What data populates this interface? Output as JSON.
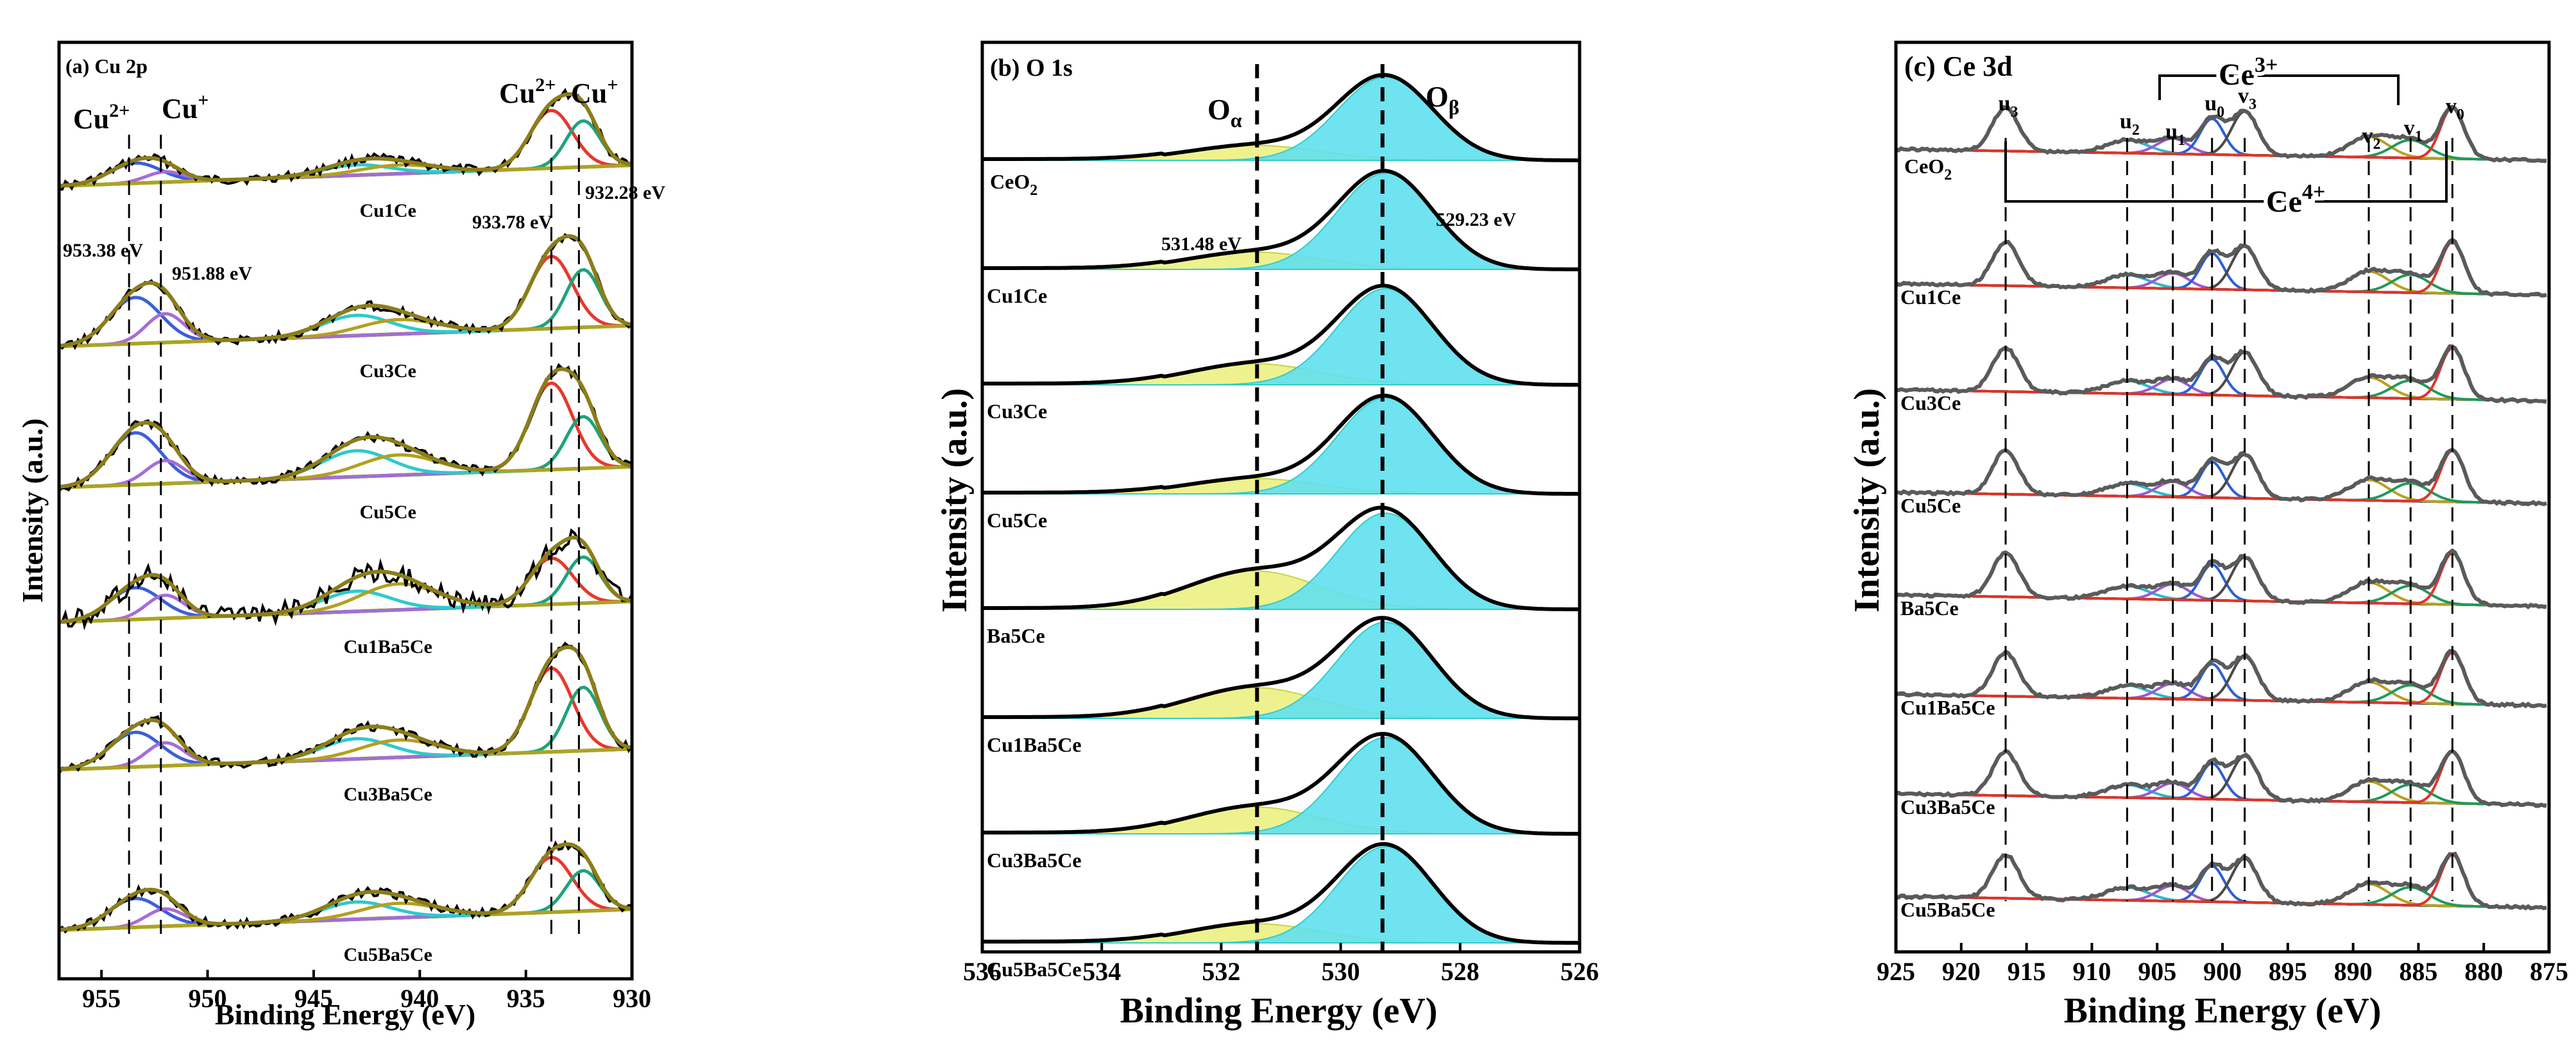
{
  "figure": {
    "panels": 3,
    "colors": {
      "data": "#000000",
      "baseline_cu": "#a6e22e",
      "baseline_cyan": "#22c4d4",
      "envelope_cu": "#8b7d1a",
      "cu2_main": "#e8372d",
      "cu1_main": "#1fa37a",
      "cu2_sat": "#3c5fd8",
      "cu1_sat": "#a66cd8",
      "shake_cyan": "#2ec9cf",
      "shake_olive": "#b3a021",
      "o_beta_fill": "#5fe0ee",
      "o_alpha_fill": "#eaf07a",
      "ce_purple": "#9b59d0",
      "ce_cyan": "#2eb8c9",
      "ce_blue": "#2b5fd6",
      "ce_gray": "#4a4a4a",
      "ce_green": "#1f9a5a",
      "ce_red": "#e0332a",
      "ce_olive": "#b8a021",
      "ce_baseline": "#7a5a1a"
    }
  },
  "chart_data": [
    {
      "type": "line",
      "panel": "a",
      "title": "(a) Cu 2p",
      "xlabel": "Binding Energy (eV)",
      "ylabel": "Intensity (a.u.)",
      "xlim": [
        957,
        930
      ],
      "xticks": [
        955,
        950,
        945,
        940,
        935,
        930
      ],
      "xtick_labels": [
        "955",
        "950",
        "945",
        "940",
        "935",
        "930"
      ],
      "series": [
        "Cu1Ce",
        "Cu3Ce",
        "Cu5Ce",
        "Cu1Ba5Ce",
        "Cu3Ba5Ce",
        "Cu5Ba5Ce"
      ],
      "reference_lines_eV": [
        953.7,
        952.2,
        933.8,
        932.5
      ],
      "annotations": {
        "cu2_left": "Cu",
        "cu2_left_sup": "2+",
        "cu1_left": "Cu",
        "cu1_left_sup": "+",
        "cu2_right": "Cu",
        "cu2_right_sup": "2+",
        "cu1_right": "Cu",
        "cu1_right_sup": "+",
        "e1": "953.38 eV",
        "e2": "951.88 eV",
        "e3": "933.78 eV",
        "e4": "932.28 eV"
      }
    },
    {
      "type": "area",
      "panel": "b",
      "title": "(b) O 1s",
      "xlabel": "Binding Energy (eV)",
      "ylabel": "Intensity (a.u.)",
      "xlim": [
        536,
        526
      ],
      "xticks": [
        536,
        534,
        532,
        530,
        528,
        526
      ],
      "xtick_labels": [
        "536",
        "534",
        "532",
        "530",
        "528",
        "526"
      ],
      "series": [
        "CeO",
        "Cu1Ce",
        "Cu3Ce",
        "Cu5Ce",
        "Ba5Ce",
        "Cu1Ba5Ce",
        "Cu3Ba5Ce",
        "Cu5Ba5Ce"
      ],
      "ceo2_label": {
        "base": "CeO",
        "sub": "2"
      },
      "reference_lines_eV": [
        531.4,
        529.3
      ],
      "peaks": {
        "O_alpha_eV": 531.48,
        "O_beta_eV": 529.23
      },
      "annotations": {
        "o_alpha": "O",
        "o_alpha_sub": "α",
        "o_beta": "O",
        "o_beta_sub": "β",
        "e_alpha": "531.48 eV",
        "e_beta": "529.23 eV"
      }
    },
    {
      "type": "line",
      "panel": "c",
      "title": "(c) Ce 3d",
      "xlabel": "Binding Energy (eV)",
      "ylabel": "Intensity (a.u.)",
      "xlim": [
        925,
        875
      ],
      "xticks": [
        925,
        920,
        915,
        910,
        905,
        900,
        895,
        890,
        885,
        880,
        875
      ],
      "xtick_labels": [
        "925",
        "920",
        "915",
        "910",
        "905",
        "900",
        "895",
        "890",
        "885",
        "880",
        "875"
      ],
      "series": [
        "CeO",
        "Cu1Ce",
        "Cu3Ce",
        "Cu5Ce",
        "Ba5Ce",
        "Cu1Ba5Ce",
        "Cu3Ba5Ce",
        "Cu5Ba5Ce"
      ],
      "ceo2_label": {
        "base": "CeO",
        "sub": "2"
      },
      "reference_lines_eV": [
        916.6,
        907.3,
        903.8,
        900.8,
        898.3,
        888.8,
        885.6,
        882.4
      ],
      "peak_labels": [
        "u3",
        "u2",
        "u1",
        "u0",
        "v3",
        "v2",
        "v1",
        "v0"
      ],
      "brackets": {
        "ce3": "Ce",
        "ce3_sup": "3+",
        "ce4": "Ce",
        "ce4_sup": "4+"
      }
    }
  ]
}
